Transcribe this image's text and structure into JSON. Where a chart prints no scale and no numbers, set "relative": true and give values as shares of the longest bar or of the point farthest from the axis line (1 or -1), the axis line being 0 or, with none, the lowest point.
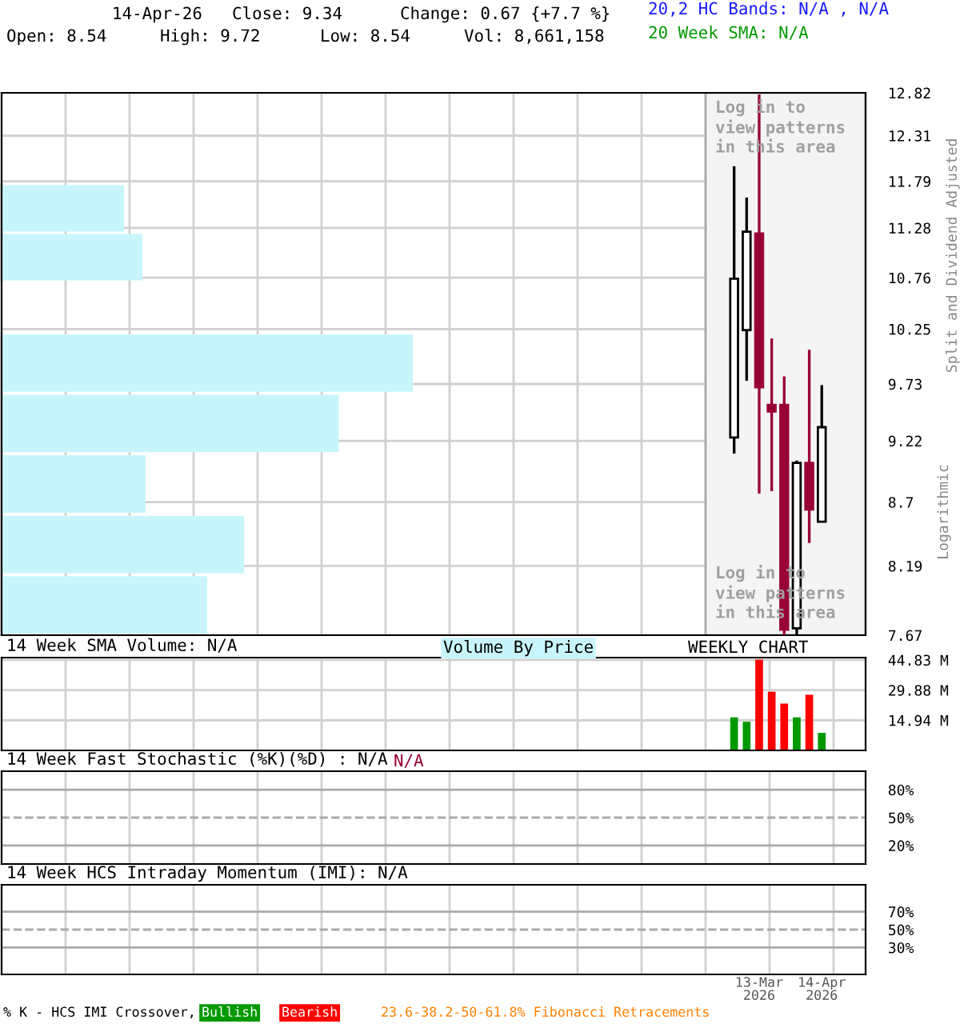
{
  "chart_data": [
    {
      "type": "candlestick",
      "categories": [
        null,
        null,
        null,
        null,
        null,
        null,
        null,
        null,
        null,
        null,
        null,
        null,
        null,
        null,
        null,
        null,
        null,
        null,
        null,
        null,
        null,
        null,
        null,
        null,
        null,
        null,
        null,
        null,
        null,
        null,
        null,
        null,
        null,
        null,
        null,
        null,
        null,
        null,
        null,
        null,
        null,
        null,
        null,
        null,
        null,
        null,
        null,
        null,
        null,
        null,
        null,
        null,
        null,
        null,
        null,
        null,
        null,
        null,
        null,
        null,
        null,
        null,
        null,
        null,
        null,
        null,
        null,
        null,
        null
      ],
      "ohlc": [
        null,
        null,
        null,
        null,
        null,
        null,
        null,
        null,
        null,
        null,
        null,
        null,
        null,
        null,
        null,
        null,
        null,
        null,
        null,
        null,
        null,
        null,
        null,
        null,
        null,
        null,
        null,
        null,
        null,
        null,
        null,
        null,
        null,
        null,
        null,
        null,
        null,
        null,
        null,
        null,
        null,
        null,
        null,
        null,
        null,
        null,
        null,
        null,
        null,
        null,
        null,
        null,
        null,
        null,
        null,
        null,
        null,
        null,
        [
          9.25,
          11.96,
          9.11,
          10.75
        ],
        [
          10.24,
          11.61,
          9.76,
          11.24
        ],
        [
          11.22,
          12.8,
          8.77,
          9.7
        ],
        [
          9.54,
          10.16,
          8.79,
          9.48
        ],
        [
          9.54,
          9.8,
          7.67,
          7.71
        ],
        [
          7.72,
          9.05,
          7.67,
          9.03
        ],
        [
          9.03,
          10.05,
          8.37,
          8.64
        ],
        [
          8.54,
          9.72,
          8.54,
          9.34
        ],
        null,
        null,
        null
      ],
      "colors": [
        null,
        null,
        null,
        null,
        null,
        null,
        null,
        null,
        null,
        null,
        null,
        null,
        null,
        null,
        null,
        null,
        null,
        null,
        null,
        null,
        null,
        null,
        null,
        null,
        null,
        null,
        null,
        null,
        null,
        null,
        null,
        null,
        null,
        null,
        null,
        null,
        null,
        null,
        null,
        null,
        null,
        null,
        null,
        null,
        null,
        null,
        null,
        null,
        null,
        null,
        null,
        null,
        null,
        null,
        null,
        null,
        null,
        null,
        "#ffffff",
        "#ffffff",
        "#990033",
        "#990033",
        "#990033",
        "#ffffff",
        "#990033",
        "#ffffff",
        null,
        null,
        null
      ],
      "log": true,
      "ylim": [
        7.67,
        12.82
      ],
      "yticks": [
        7.67,
        8.19,
        8.7,
        9.22,
        9.73,
        10.25,
        10.76,
        11.28,
        11.79,
        12.31,
        12.82
      ],
      "ylabel": "Split and Dividend Adjusted",
      "grid": true,
      "annotations": [
        "14-Apr-26",
        "Close: 9.34",
        "Change: 0.67 {+7.7 %}",
        "20,2 HC Bands: N/A , N/A",
        "Open: 8.54",
        "High: 9.72",
        "Low: 8.54",
        "Vol: 8,661,158",
        "20 Week SMA: N/A",
        "Log in to\nview patterns\nin this area",
        "Log in to\nview patterns\nin this area",
        "Logarithmic",
        "WEEKLY CHART",
        "Volume By Price"
      ]
    },
    {
      "type": "bar",
      "orientation": "horizontal",
      "relative": true,
      "categories": [
        null,
        null
      ],
      "values": [
        0.87,
        1.0
      ],
      "color": "#c8f5fc"
    },
    {
      "type": "bar",
      "orientation": "horizontal",
      "relative": true,
      "categories": [
        null,
        null,
        null,
        null,
        null
      ],
      "values": [
        1.0,
        0.82,
        0.35,
        0.59,
        0.5
      ],
      "color": "#c8f5fc"
    },
    {
      "type": "bar",
      "title": "14 Week SMA Volume: N/A",
      "categories": [
        null,
        null,
        null,
        null,
        null,
        null,
        null,
        null,
        null,
        null,
        null,
        null,
        null,
        null,
        null,
        null,
        null,
        null,
        null,
        null,
        null,
        null,
        null,
        null,
        null,
        null,
        null,
        null,
        null,
        null,
        null,
        null,
        null,
        null,
        null,
        null,
        null,
        null,
        null,
        null,
        null,
        null,
        null,
        null,
        null,
        null,
        null,
        null,
        null,
        null,
        null,
        null,
        null,
        null,
        null,
        null,
        null,
        null,
        null,
        null,
        null,
        null,
        null,
        null,
        null,
        null,
        null,
        null,
        null
      ],
      "values": [
        null,
        null,
        null,
        null,
        null,
        null,
        null,
        null,
        null,
        null,
        null,
        null,
        null,
        null,
        null,
        null,
        null,
        null,
        null,
        null,
        null,
        null,
        null,
        null,
        null,
        null,
        null,
        null,
        null,
        null,
        null,
        null,
        null,
        null,
        null,
        null,
        null,
        null,
        null,
        null,
        null,
        null,
        null,
        null,
        null,
        null,
        null,
        null,
        null,
        null,
        null,
        null,
        null,
        null,
        null,
        null,
        null,
        null,
        16.4,
        14.2,
        45.0,
        29.1,
        23.2,
        16.4,
        27.6,
        8.7,
        null,
        null,
        null
      ],
      "colors": [
        null,
        null,
        null,
        null,
        null,
        null,
        null,
        null,
        null,
        null,
        null,
        null,
        null,
        null,
        null,
        null,
        null,
        null,
        null,
        null,
        null,
        null,
        null,
        null,
        null,
        null,
        null,
        null,
        null,
        null,
        null,
        null,
        null,
        null,
        null,
        null,
        null,
        null,
        null,
        null,
        null,
        null,
        null,
        null,
        null,
        null,
        null,
        null,
        null,
        null,
        null,
        null,
        null,
        null,
        null,
        null,
        null,
        null,
        "#009900",
        "#009900",
        "#ff0000",
        "#ff0000",
        "#ff0000",
        "#009900",
        "#ff0000",
        "#009900",
        null,
        null,
        null
      ],
      "ylim": [
        0,
        46
      ],
      "yticks": [
        {
          "value": 14.94,
          "label": "14.94 M"
        },
        {
          "value": 29.88,
          "label": "29.88 M"
        },
        {
          "value": 44.83,
          "label": "44.83 M"
        }
      ],
      "grid": true
    },
    {
      "type": "line",
      "title": "14 Week Fast Stochastic (%K)(%D) : N/A",
      "categories": [
        null,
        null,
        null,
        null,
        null,
        null,
        null,
        null,
        null,
        null,
        null,
        null,
        null,
        null,
        null,
        null,
        null,
        null,
        null,
        null,
        null,
        null,
        null,
        null,
        null,
        null,
        null,
        null,
        null,
        null,
        null,
        null,
        null,
        null,
        null,
        null,
        null,
        null,
        null,
        null,
        null,
        null,
        null,
        null,
        null,
        null,
        null,
        null,
        null,
        null,
        null,
        null,
        null,
        null,
        null,
        null,
        null,
        null,
        null,
        null,
        null,
        null,
        null,
        null,
        null,
        null,
        null,
        null,
        null
      ],
      "ylim": [
        0,
        100
      ],
      "yticks": [
        {
          "value": 20,
          "label": "20%"
        },
        {
          "value": 50,
          "label": "50%"
        },
        {
          "value": 80,
          "label": "80%"
        }
      ],
      "grid": "x",
      "ref_lines": [
        {
          "axis": "y",
          "value": 80,
          "color": "#aaaaaa",
          "line_style": "solid"
        },
        {
          "axis": "y",
          "value": 50,
          "color": "#aaaaaa",
          "line_style": "dashed"
        },
        {
          "axis": "y",
          "value": 20,
          "color": "#aaaaaa",
          "line_style": "solid"
        }
      ],
      "annotations": [
        "N/A"
      ]
    },
    {
      "type": "line",
      "title": "14 Week HCS Intraday Momentum (IMI): N/A",
      "categories": [
        null,
        null,
        null,
        null,
        null,
        null,
        null,
        null,
        null,
        null,
        null,
        null,
        null,
        null,
        null,
        null,
        null,
        null,
        null,
        null,
        null,
        null,
        null,
        null,
        null,
        null,
        null,
        null,
        null,
        null,
        null,
        null,
        null,
        null,
        null,
        null,
        null,
        null,
        null,
        null,
        null,
        null,
        null,
        null,
        null,
        null,
        null,
        null,
        null,
        null,
        null,
        null,
        null,
        null,
        null,
        null,
        null,
        null,
        null,
        null,
        "13-Mar\n2026",
        null,
        null,
        null,
        null,
        "14-Apr\n2026",
        null,
        null,
        null
      ],
      "ylim": [
        0,
        100
      ],
      "yticks": [
        {
          "value": 30,
          "label": "30%"
        },
        {
          "value": 50,
          "label": "50%"
        },
        {
          "value": 70,
          "label": "70%"
        }
      ],
      "grid": "x",
      "ref_lines": [
        {
          "axis": "y",
          "value": 70,
          "color": "#aaaaaa",
          "line_style": "solid"
        },
        {
          "axis": "y",
          "value": 50,
          "color": "#aaaaaa",
          "line_style": "dashed"
        },
        {
          "axis": "y",
          "value": 30,
          "color": "#aaaaaa",
          "line_style": "solid"
        }
      ],
      "annotations": [
        "% K - HCS IMI Crossover,",
        "Bullish",
        "Bearish",
        "23.6-38.2-50-61.8% Fibonacci Retracements"
      ]
    }
  ]
}
